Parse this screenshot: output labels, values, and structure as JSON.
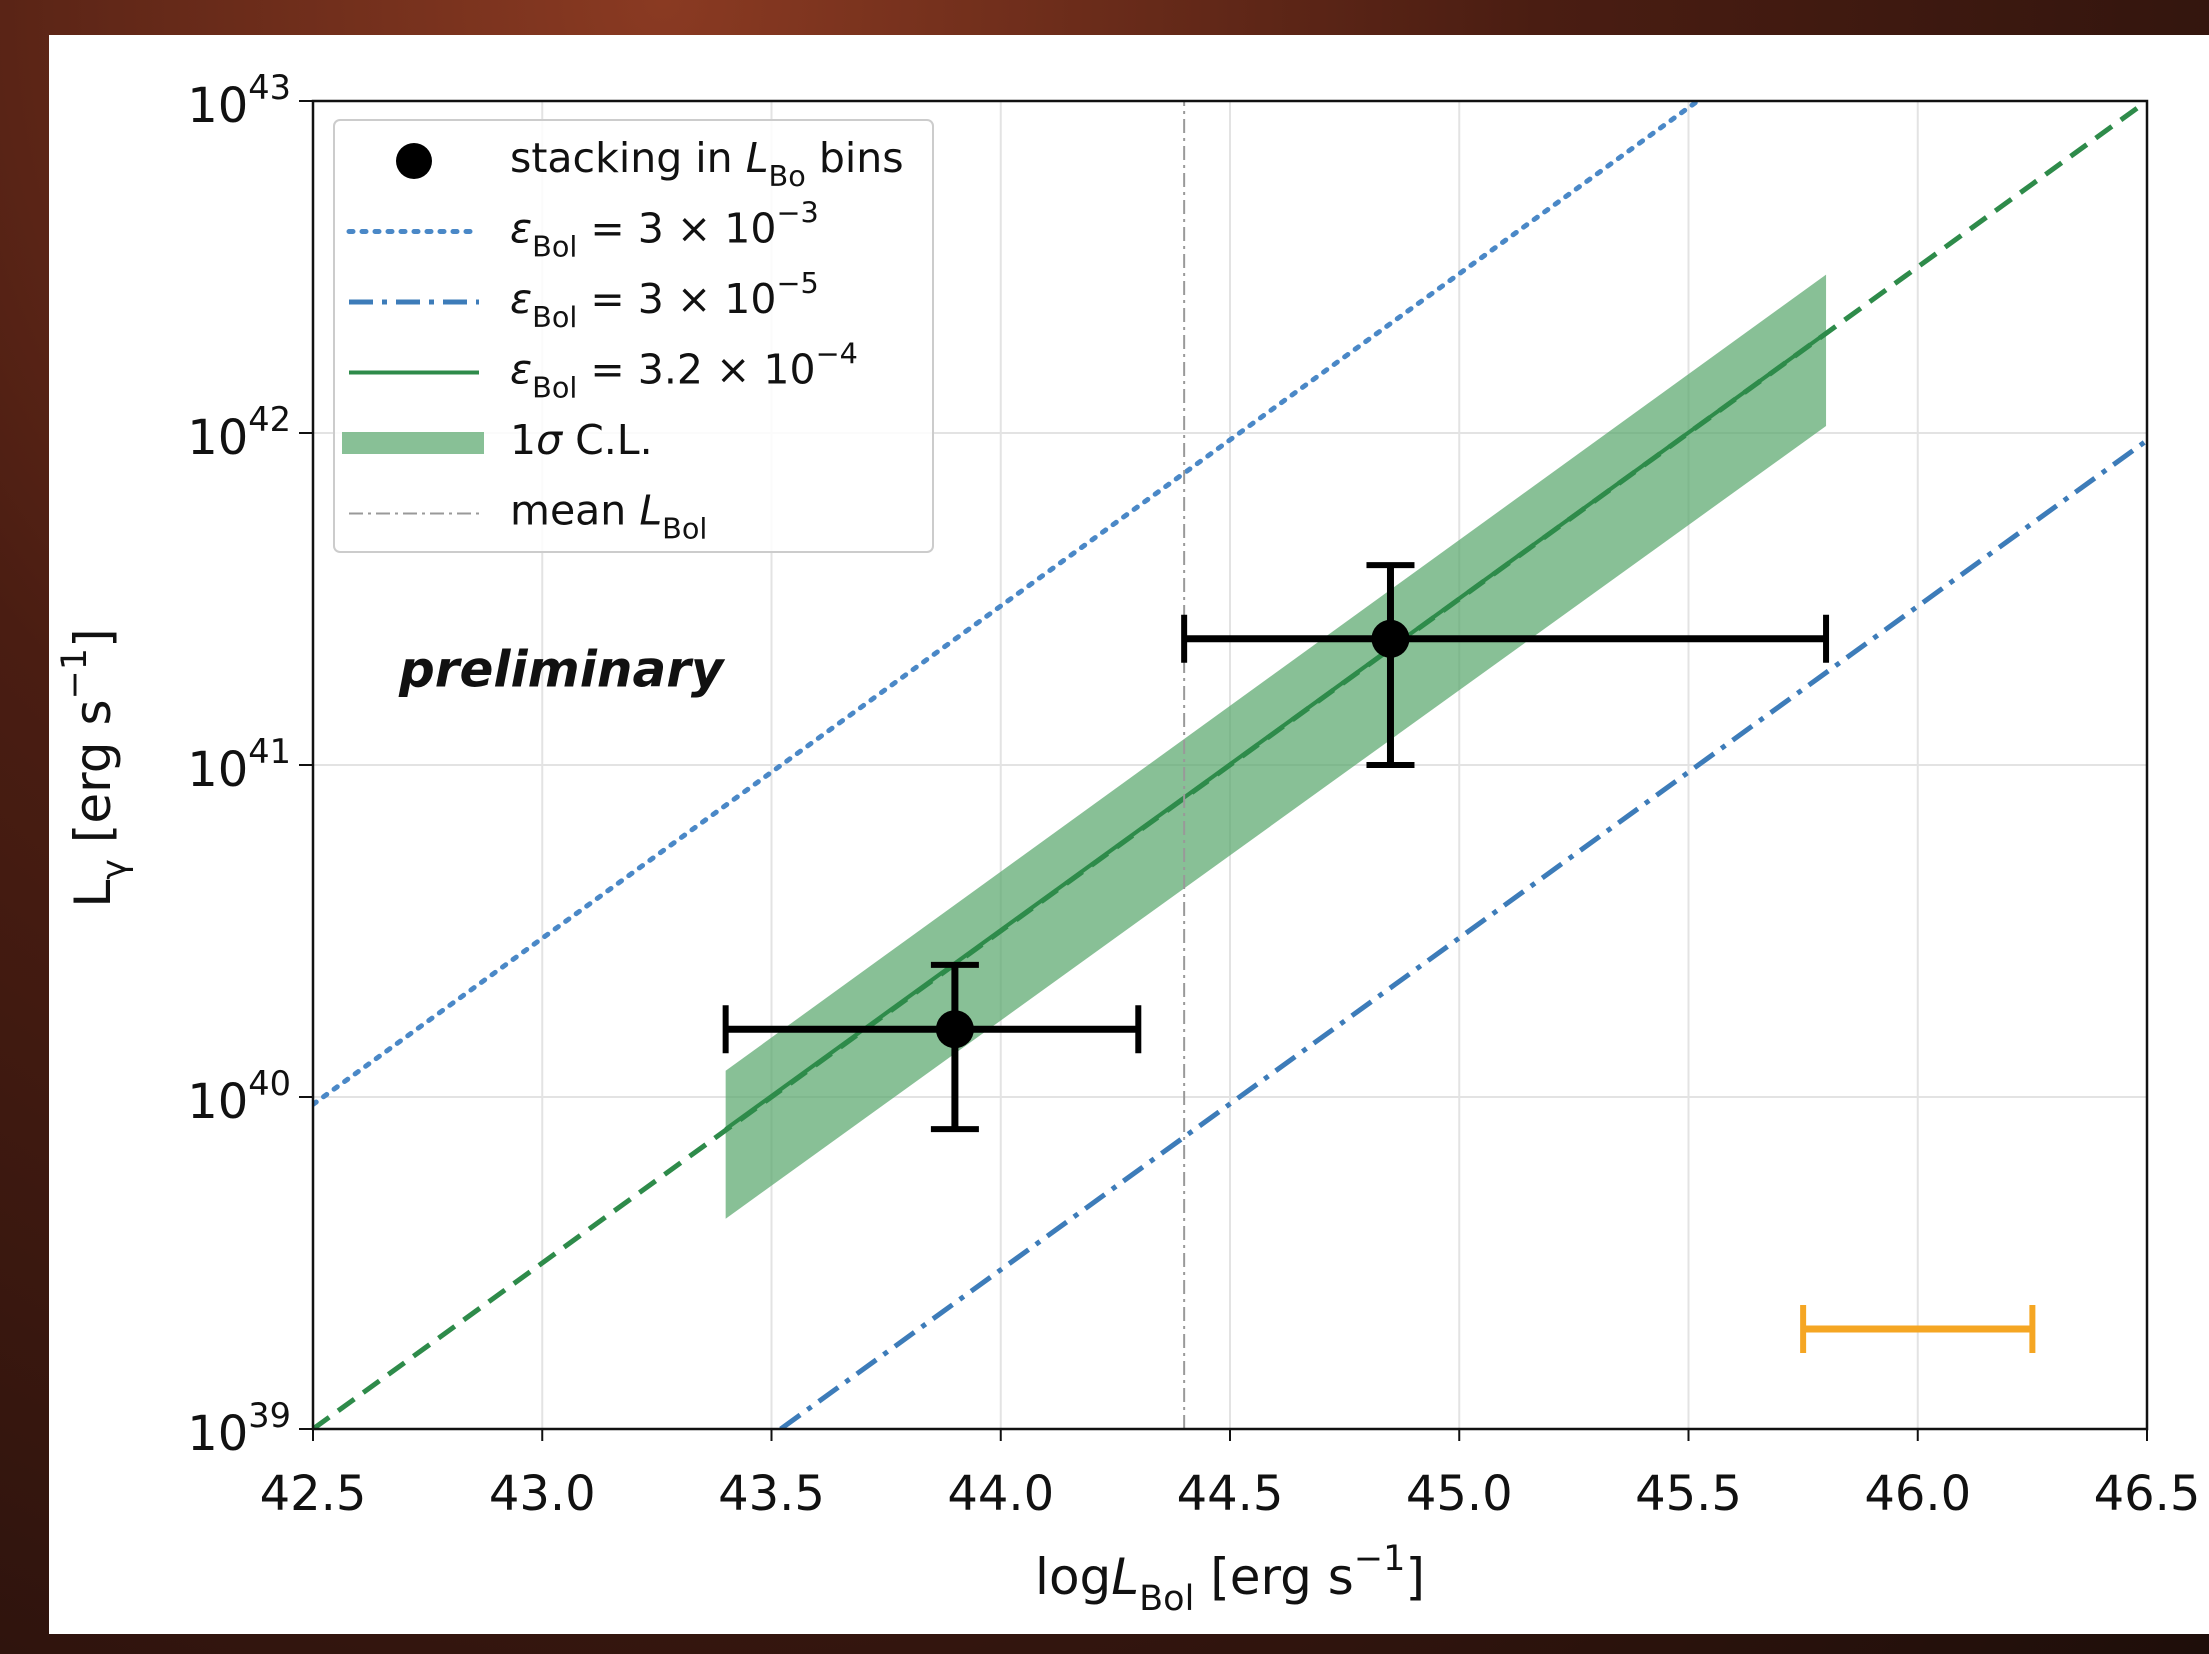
{
  "chart_data": {
    "type": "scatter",
    "yscale": "log",
    "grid": true,
    "legend": "upper left",
    "xlim": [
      42.5,
      46.5
    ],
    "ylim": [
      1e+39,
      1e+43
    ],
    "xticks": [
      42.5,
      {
        "value": 43,
        "label": "43.0"
      },
      43.5,
      {
        "value": 44,
        "label": "44.0"
      },
      44.5,
      {
        "value": 45,
        "label": "45.0"
      },
      45.5,
      {
        "value": 46,
        "label": "46.0"
      },
      46.5
    ],
    "yticks": [
      {
        "value": 1e+39,
        "label": [
          {
            "text": "10"
          },
          {
            "text": "39",
            "style": "sup"
          }
        ]
      },
      {
        "value": 1e+40,
        "label": [
          {
            "text": "10"
          },
          {
            "text": "40",
            "style": "sup"
          }
        ]
      },
      {
        "value": 1e+41,
        "label": [
          {
            "text": "10"
          },
          {
            "text": "41",
            "style": "sup"
          }
        ]
      },
      {
        "value": 1e+42,
        "label": [
          {
            "text": "10"
          },
          {
            "text": "42",
            "style": "sup"
          }
        ]
      },
      {
        "value": 1e+43,
        "label": [
          {
            "text": "10"
          },
          {
            "text": "43",
            "style": "sup"
          }
        ]
      }
    ],
    "xlabel": [
      {
        "text": "log"
      },
      {
        "text": "L",
        "style": "italic"
      },
      {
        "text": "Bol",
        "style": "sub"
      },
      {
        "text": " [erg s"
      },
      {
        "text": "−1",
        "style": "sup"
      },
      {
        "text": "]"
      }
    ],
    "ylabel": [
      {
        "text": "L"
      },
      {
        "text": "γ",
        "style": "sub"
      },
      {
        "text": " [erg s"
      },
      {
        "text": "−1",
        "style": "sup"
      },
      {
        "text": "]"
      }
    ],
    "annotation": {
      "text": "preliminary",
      "color": "#e8823a"
    },
    "series": [
      {
        "name": [
          {
            "text": "stacking in "
          },
          {
            "text": "L",
            "style": "italic"
          },
          {
            "text": "Bo",
            "style": "sub"
          },
          {
            "text": "  bins"
          }
        ],
        "style": "errorbar",
        "color": "#000000",
        "x": [
          43.9,
          44.85
        ],
        "values": [
          1.6e+40,
          2.4e+41
        ],
        "xmin": [
          43.4,
          44.4
        ],
        "xmax": [
          44.3,
          45.8
        ],
        "ymin": [
          8e+39,
          1e+41
        ],
        "ymax": [
          2.5e+40,
          4e+41
        ]
      },
      {
        "name": [
          {
            "text": "ε",
            "style": "italic"
          },
          {
            "text": "Bol",
            "style": "sub"
          },
          {
            "text": " = 3 × 10"
          },
          {
            "text": "−3",
            "style": "sup"
          }
        ],
        "style": "dotted",
        "color": "#4a88c7",
        "x": [
          42.5,
          45.52
        ],
        "values": [
          9.5e+39,
          1e+43
        ]
      },
      {
        "name": [
          {
            "text": "ε",
            "style": "italic"
          },
          {
            "text": "Bol",
            "style": "sub"
          },
          {
            "text": " = 3 × 10"
          },
          {
            "text": "−5",
            "style": "sup"
          }
        ],
        "style": "dashdot",
        "color": "#3d7cb9",
        "x": [
          43.52,
          46.5
        ],
        "values": [
          1e+39,
          9.5e+41
        ]
      },
      {
        "name": [
          {
            "text": "ε",
            "style": "italic"
          },
          {
            "text": "Bol",
            "style": "sub"
          },
          {
            "text": " = 3.2 × 10"
          },
          {
            "text": "−4",
            "style": "sup"
          }
        ],
        "style": "solid",
        "color": "#2e8b4a",
        "x": [
          43.4,
          45.8
        ],
        "values": [
          8e+39,
          2e+42
        ]
      },
      {
        "name": [
          {
            "text": "1"
          },
          {
            "text": "σ",
            "style": "italic"
          },
          {
            "text": " C.L."
          }
        ],
        "style": "band",
        "color": "#5aa86e",
        "x": [
          43.4,
          45.8
        ],
        "lower": [
          4.3e+39,
          1.05e+42
        ],
        "upper": [
          1.2e+40,
          3e+42
        ]
      },
      {
        "name": [
          {
            "text": "mean "
          },
          {
            "text": "L",
            "style": "italic"
          },
          {
            "text": "Bol",
            "style": "sub"
          }
        ],
        "style": "thin-dashdot",
        "color": "#999999",
        "x": [
          44.4,
          44.4
        ],
        "values": [
          1e+39,
          1e+43
        ]
      },
      {
        "style": "dashed",
        "color": "#2e8b4a",
        "x": [
          42.5,
          46.5
        ],
        "values": [
          1e+39,
          1e+43
        ]
      },
      {
        "style": "bar",
        "color": "#f5a623",
        "x": [
          45.75,
          46.25
        ],
        "values": [
          2e+39,
          2e+39
        ]
      }
    ]
  }
}
